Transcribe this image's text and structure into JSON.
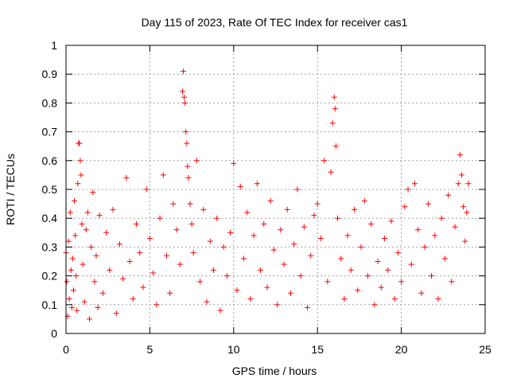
{
  "chart_data": {
    "type": "scatter",
    "title": "Day 115 of 2023, Rate Of TEC Index for receiver cas1",
    "xlabel": "GPS time / hours",
    "ylabel": "ROTI / TECUs",
    "xlim": [
      0,
      25
    ],
    "ylim": [
      0,
      1
    ],
    "xticks": [
      0,
      5,
      10,
      15,
      20,
      25
    ],
    "xtick_labels": [
      "0",
      "5",
      "10",
      "15",
      "20",
      "25"
    ],
    "yticks": [
      0,
      0.1,
      0.2,
      0.3,
      0.4,
      0.5,
      0.6,
      0.7,
      0.8,
      0.9,
      1
    ],
    "ytick_labels": [
      "0",
      "0.1",
      "0.2",
      "0.3",
      "0.4",
      "0.5",
      "0.6",
      "0.7",
      "0.8",
      "0.9",
      "1"
    ],
    "grid": true,
    "marker": "+",
    "series_color": "#ff0000",
    "series": [
      {
        "points": [
          [
            0.0,
            0.28
          ],
          [
            0.05,
            0.18
          ],
          [
            0.1,
            0.06
          ],
          [
            0.15,
            0.32
          ],
          [
            0.2,
            0.12
          ],
          [
            0.25,
            0.42
          ],
          [
            0.3,
            0.22
          ],
          [
            0.35,
            0.09
          ],
          [
            0.4,
            0.26
          ],
          [
            0.45,
            0.15
          ],
          [
            0.5,
            0.46
          ],
          [
            0.55,
            0.34
          ],
          [
            0.6,
            0.2
          ],
          [
            0.65,
            0.08
          ],
          [
            0.7,
            0.52
          ],
          [
            0.75,
            0.66
          ],
          [
            0.8,
            0.66
          ],
          [
            0.85,
            0.6
          ],
          [
            0.9,
            0.55
          ],
          [
            0.95,
            0.38
          ],
          [
            1.0,
            0.24
          ],
          [
            1.1,
            0.11
          ],
          [
            1.2,
            0.36
          ],
          [
            1.3,
            0.42
          ],
          [
            1.4,
            0.05
          ],
          [
            1.5,
            0.3
          ],
          [
            1.6,
            0.49
          ],
          [
            1.7,
            0.18
          ],
          [
            1.8,
            0.27
          ],
          [
            1.9,
            0.09
          ],
          [
            2.0,
            0.41
          ],
          [
            2.2,
            0.14
          ],
          [
            2.4,
            0.35
          ],
          [
            2.6,
            0.22
          ],
          [
            2.8,
            0.43
          ],
          [
            3.0,
            0.07
          ],
          [
            3.2,
            0.31
          ],
          [
            3.4,
            0.19
          ],
          [
            3.6,
            0.54
          ],
          [
            3.8,
            0.25
          ],
          [
            4.0,
            0.12
          ],
          [
            4.2,
            0.38
          ],
          [
            4.4,
            0.28
          ],
          [
            4.6,
            0.16
          ],
          [
            4.8,
            0.5
          ],
          [
            5.0,
            0.33
          ],
          [
            5.2,
            0.21
          ],
          [
            5.4,
            0.1
          ],
          [
            5.6,
            0.4
          ],
          [
            5.8,
            0.55
          ],
          [
            6.0,
            0.27
          ],
          [
            6.2,
            0.14
          ],
          [
            6.4,
            0.45
          ],
          [
            6.6,
            0.36
          ],
          [
            6.8,
            0.24
          ],
          [
            6.95,
            0.84
          ],
          [
            7.0,
            0.91
          ],
          [
            7.05,
            0.82
          ],
          [
            7.1,
            0.8
          ],
          [
            7.15,
            0.7
          ],
          [
            7.2,
            0.66
          ],
          [
            7.25,
            0.58
          ],
          [
            7.3,
            0.54
          ],
          [
            7.4,
            0.45
          ],
          [
            7.5,
            0.38
          ],
          [
            7.6,
            0.28
          ],
          [
            7.8,
            0.6
          ],
          [
            8.0,
            0.18
          ],
          [
            8.2,
            0.43
          ],
          [
            8.4,
            0.11
          ],
          [
            8.6,
            0.32
          ],
          [
            8.8,
            0.22
          ],
          [
            9.0,
            0.4
          ],
          [
            9.2,
            0.08
          ],
          [
            9.4,
            0.3
          ],
          [
            9.6,
            0.2
          ],
          [
            9.8,
            0.35
          ],
          [
            10.0,
            0.59
          ],
          [
            10.2,
            0.15
          ],
          [
            10.4,
            0.51
          ],
          [
            10.6,
            0.26
          ],
          [
            10.8,
            0.42
          ],
          [
            11.0,
            0.12
          ],
          [
            11.2,
            0.34
          ],
          [
            11.4,
            0.52
          ],
          [
            11.6,
            0.22
          ],
          [
            11.8,
            0.38
          ],
          [
            12.0,
            0.16
          ],
          [
            12.2,
            0.46
          ],
          [
            12.4,
            0.29
          ],
          [
            12.6,
            0.1
          ],
          [
            12.8,
            0.36
          ],
          [
            13.0,
            0.24
          ],
          [
            13.2,
            0.43
          ],
          [
            13.4,
            0.14
          ],
          [
            13.6,
            0.31
          ],
          [
            13.8,
            0.5
          ],
          [
            14.0,
            0.2
          ],
          [
            14.2,
            0.37
          ],
          [
            14.4,
            0.09
          ],
          [
            14.6,
            0.27
          ],
          [
            14.8,
            0.41
          ],
          [
            15.0,
            0.45
          ],
          [
            15.2,
            0.33
          ],
          [
            15.4,
            0.6
          ],
          [
            15.6,
            0.18
          ],
          [
            15.8,
            0.56
          ],
          [
            15.9,
            0.73
          ],
          [
            16.0,
            0.82
          ],
          [
            16.05,
            0.78
          ],
          [
            16.1,
            0.65
          ],
          [
            16.2,
            0.4
          ],
          [
            16.4,
            0.26
          ],
          [
            16.6,
            0.12
          ],
          [
            16.8,
            0.34
          ],
          [
            17.0,
            0.22
          ],
          [
            17.2,
            0.43
          ],
          [
            17.4,
            0.15
          ],
          [
            17.6,
            0.3
          ],
          [
            17.8,
            0.46
          ],
          [
            18.0,
            0.2
          ],
          [
            18.2,
            0.38
          ],
          [
            18.4,
            0.1
          ],
          [
            18.6,
            0.25
          ],
          [
            18.8,
            0.16
          ],
          [
            19.0,
            0.33
          ],
          [
            19.2,
            0.22
          ],
          [
            19.4,
            0.39
          ],
          [
            19.6,
            0.12
          ],
          [
            19.8,
            0.28
          ],
          [
            20.0,
            0.18
          ],
          [
            20.2,
            0.44
          ],
          [
            20.4,
            0.5
          ],
          [
            20.6,
            0.24
          ],
          [
            20.8,
            0.52
          ],
          [
            21.0,
            0.36
          ],
          [
            21.2,
            0.14
          ],
          [
            21.4,
            0.3
          ],
          [
            21.6,
            0.45
          ],
          [
            21.8,
            0.2
          ],
          [
            22.0,
            0.34
          ],
          [
            22.2,
            0.12
          ],
          [
            22.4,
            0.4
          ],
          [
            22.6,
            0.26
          ],
          [
            22.8,
            0.48
          ],
          [
            23.0,
            0.18
          ],
          [
            23.2,
            0.37
          ],
          [
            23.4,
            0.52
          ],
          [
            23.5,
            0.62
          ],
          [
            23.6,
            0.55
          ],
          [
            23.7,
            0.44
          ],
          [
            23.8,
            0.32
          ],
          [
            23.9,
            0.42
          ],
          [
            24.0,
            0.52
          ]
        ]
      }
    ]
  }
}
